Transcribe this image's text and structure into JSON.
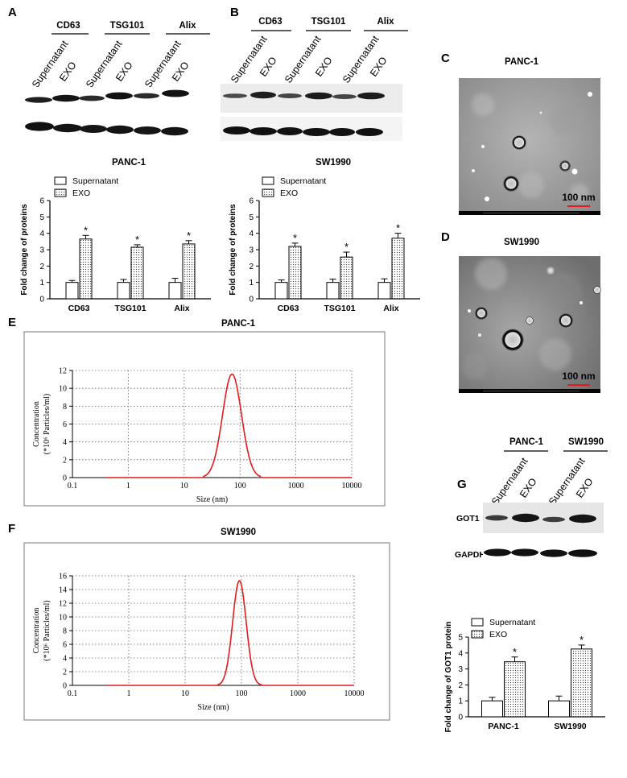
{
  "panels": {
    "A": {
      "label": "A",
      "groups": [
        "CD63",
        "TSG101",
        "Alix"
      ],
      "lanes": [
        "Supernatant",
        "EXO",
        "Supernatant",
        "EXO",
        "Supernatant",
        "EXO"
      ]
    },
    "B": {
      "label": "B",
      "groups": [
        "CD63",
        "TSG101",
        "Alix"
      ],
      "lanes": [
        "Supernatant",
        "EXO",
        "Supernatant",
        "EXO",
        "Supernatant",
        "EXO"
      ]
    },
    "C": {
      "label": "C",
      "title": "PANC-1",
      "scale_text": "100 nm"
    },
    "D": {
      "label": "D",
      "title": "SW1990",
      "scale_text": "100 nm"
    },
    "E": {
      "label": "E"
    },
    "F": {
      "label": "F"
    },
    "G": {
      "label": "G",
      "groups": [
        "PANC-1",
        "SW1990"
      ],
      "lanes": [
        "Supernatant",
        "EXO",
        "Supernatant",
        "EXO"
      ],
      "row_labels": [
        "GOT1",
        "GAPDH"
      ]
    }
  },
  "colors": {
    "curve": "#e41a1c",
    "scalebar": "#e41a1c",
    "grid": "#555555"
  },
  "chart_data": [
    {
      "id": "A-bar",
      "type": "bar",
      "title": "PANC-1",
      "ylabel": "Fold change of proteins",
      "categories": [
        "CD63",
        "TSG101",
        "Alix"
      ],
      "yticks": [
        "0",
        "1",
        "2",
        "3",
        "4",
        "5",
        "6"
      ],
      "ylim": [
        0,
        6
      ],
      "series": [
        {
          "name": "Supernatant",
          "values": [
            1.0,
            1.0,
            1.0
          ],
          "errors": [
            0.12,
            0.18,
            0.25
          ]
        },
        {
          "name": "EXO",
          "values": [
            3.65,
            3.15,
            3.35
          ],
          "errors": [
            0.22,
            0.15,
            0.2
          ]
        }
      ],
      "marks": [
        "*",
        "*",
        "*"
      ],
      "legend": "top-left"
    },
    {
      "id": "B-bar",
      "type": "bar",
      "title": "SW1990",
      "ylabel": "Fold change of proteins",
      "categories": [
        "CD63",
        "TSG101",
        "Alix"
      ],
      "yticks": [
        "0",
        "1",
        "2",
        "3",
        "4",
        "5",
        "6"
      ],
      "ylim": [
        0,
        6
      ],
      "series": [
        {
          "name": "Supernatant",
          "values": [
            1.0,
            1.0,
            1.0
          ],
          "errors": [
            0.15,
            0.2,
            0.22
          ]
        },
        {
          "name": "EXO",
          "values": [
            3.2,
            2.55,
            3.7
          ],
          "errors": [
            0.2,
            0.3,
            0.3
          ]
        }
      ],
      "marks": [
        "*",
        "*",
        "*"
      ],
      "legend": "top-left"
    },
    {
      "id": "E-line",
      "type": "line",
      "title": "PANC-1",
      "xlabel": "Size (nm)",
      "ylabel": "Concentration",
      "ylabel2": "(*10⁶ Particles/ml)",
      "xscale": "log",
      "xlim": [
        0.1,
        10000
      ],
      "ylim": [
        0,
        12
      ],
      "xticks": [
        "0.1",
        "1",
        "10",
        "100",
        "1000",
        "10000"
      ],
      "yticks": [
        "0",
        "2",
        "4",
        "6",
        "8",
        "10",
        "12"
      ],
      "grid": true,
      "peak": {
        "x": 72,
        "y": 11.6,
        "sigma_log10": 0.17,
        "range": [
          22,
          230
        ]
      }
    },
    {
      "id": "F-line",
      "type": "line",
      "title": "SW1990",
      "xlabel": "Size (nm)",
      "ylabel": "Concentration",
      "ylabel2": "(*10⁶ Particles/ml)",
      "xscale": "log",
      "xlim": [
        0.1,
        10000
      ],
      "ylim": [
        0,
        16
      ],
      "xticks": [
        "0.1",
        "1",
        "10",
        "100",
        "1000",
        "10000"
      ],
      "yticks": [
        "0",
        "2",
        "4",
        "6",
        "8",
        "10",
        "12",
        "14",
        "16"
      ],
      "grid": true,
      "peak": {
        "x": 92,
        "y": 15.3,
        "sigma_log10": 0.12,
        "range": [
          38,
          230
        ]
      }
    },
    {
      "id": "G-bar",
      "type": "bar",
      "ylabel": "Fold change of GOT1 protein",
      "categories": [
        "PANC-1",
        "SW1990"
      ],
      "yticks": [
        "0",
        "1",
        "2",
        "3",
        "4",
        "5"
      ],
      "ylim": [
        0,
        5
      ],
      "series": [
        {
          "name": "Supernatant",
          "values": [
            1.0,
            1.0
          ],
          "errors": [
            0.22,
            0.3
          ]
        },
        {
          "name": "EXO",
          "values": [
            3.45,
            4.25
          ],
          "errors": [
            0.3,
            0.25
          ]
        }
      ],
      "marks": [
        "*",
        "*"
      ],
      "legend": "top-left"
    }
  ]
}
